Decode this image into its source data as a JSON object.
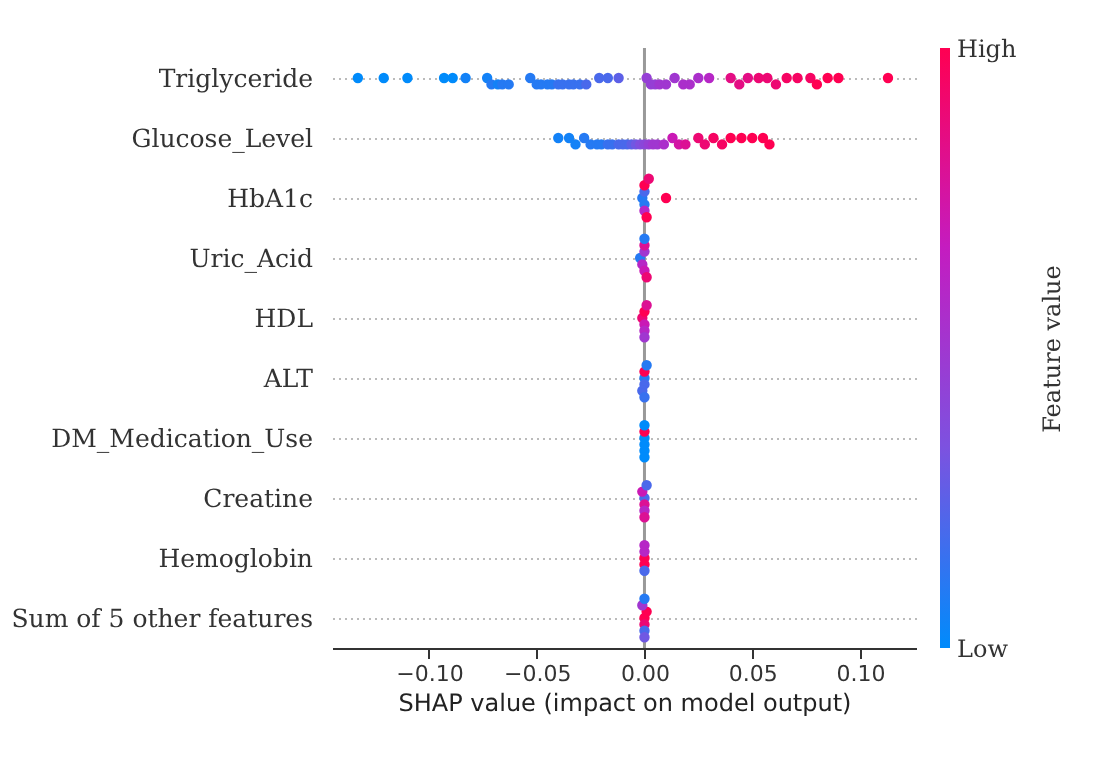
{
  "chart_data": {
    "type": "scatter",
    "orientation": "horizontal",
    "marker": "circle",
    "grid": "y",
    "categories": [
      "Triglyceride",
      "Glucose_Level",
      "HbA1c",
      "Uric_Acid",
      "HDL",
      "ALT",
      "DM_Medication_Use",
      "Creatine",
      "Hemoglobin",
      "Sum of 5 other features"
    ],
    "xlabel": "SHAP value (impact on model output)",
    "clabel": "Feature value",
    "xlim": [
      -0.145,
      0.126
    ],
    "xticks": [
      {
        "value": -0.1,
        "label": "−0.10"
      },
      {
        "value": -0.05,
        "label": "−0.05"
      },
      {
        "value": 0,
        "label": "0.00"
      },
      {
        "value": 0.05,
        "label": "0.05"
      },
      {
        "value": 0.1,
        "label": "0.10"
      }
    ],
    "clim": [
      0,
      1
    ],
    "cticks": [
      {
        "value": 0,
        "label": "Low"
      },
      {
        "value": 1,
        "label": "High"
      }
    ],
    "ref_lines": [
      {
        "axis": "x",
        "value": 0,
        "color": "#999999"
      }
    ],
    "series": [
      {
        "x": [
          "Triglyceride",
          "Triglyceride",
          "Triglyceride",
          "Triglyceride",
          "Triglyceride",
          "Triglyceride",
          "Triglyceride",
          "Triglyceride",
          "Triglyceride",
          "Triglyceride",
          "Triglyceride",
          "Triglyceride",
          "Triglyceride",
          "Triglyceride",
          "Triglyceride",
          "Triglyceride",
          "Triglyceride",
          "Triglyceride",
          "Triglyceride",
          "Triglyceride",
          "Triglyceride",
          "Triglyceride",
          "Triglyceride",
          "Triglyceride",
          "Triglyceride",
          "Triglyceride",
          "Triglyceride",
          "Triglyceride",
          "Triglyceride",
          "Triglyceride",
          "Triglyceride",
          "Triglyceride",
          "Triglyceride",
          "Triglyceride",
          "Triglyceride",
          "Triglyceride",
          "Triglyceride",
          "Triglyceride",
          "Triglyceride",
          "Triglyceride",
          "Triglyceride",
          "Triglyceride",
          "Triglyceride",
          "Triglyceride",
          "Triglyceride",
          "Triglyceride",
          "Triglyceride",
          "Triglyceride"
        ],
        "values": [
          -0.133,
          -0.121,
          -0.11,
          -0.093,
          -0.089,
          -0.083,
          -0.073,
          -0.071,
          -0.068,
          -0.066,
          -0.063,
          -0.053,
          -0.05,
          -0.048,
          -0.045,
          -0.043,
          -0.04,
          -0.038,
          -0.035,
          -0.033,
          -0.03,
          -0.027,
          -0.021,
          -0.017,
          -0.012,
          0.001,
          0.003,
          0.005,
          0.007,
          0.01,
          0.014,
          0.018,
          0.021,
          0.025,
          0.03,
          0.04,
          0.044,
          0.048,
          0.053,
          0.057,
          0.061,
          0.066,
          0.071,
          0.077,
          0.08,
          0.085,
          0.09,
          0.113
        ],
        "cvalues": [
          0,
          0,
          0,
          0,
          0,
          0.05,
          0.05,
          0.1,
          0.05,
          0.1,
          0.1,
          0.1,
          0.1,
          0.1,
          0.1,
          0.1,
          0.15,
          0.15,
          0.15,
          0.15,
          0.15,
          0.2,
          0.2,
          0.2,
          0.25,
          0.45,
          0.45,
          0.45,
          0.5,
          0.5,
          0.5,
          0.55,
          0.55,
          0.55,
          0.6,
          0.85,
          0.85,
          0.85,
          0.9,
          0.9,
          0.9,
          0.95,
          0.95,
          0.95,
          1,
          1,
          1,
          1
        ],
        "colors": [
          "#008bfb",
          "#008bfb",
          "#008bfb",
          "#008bfb",
          "#008bfb",
          "#1382f7",
          "#1382f7",
          "#257af3",
          "#1382f7",
          "#257af3",
          "#257af3",
          "#257af3",
          "#257af3",
          "#257af3",
          "#257af3",
          "#257af3",
          "#3871ef",
          "#3871ef",
          "#3871ef",
          "#3871ef",
          "#3871ef",
          "#4a69eb",
          "#4a69eb",
          "#4a69eb",
          "#5d60e7",
          "#953fd5",
          "#953fd5",
          "#953fd5",
          "#a037d0",
          "#a037d0",
          "#a037d0",
          "#ab2fcb",
          "#ab2fcb",
          "#ab2fcb",
          "#b627c6",
          "#e40d84",
          "#e40d84",
          "#e40d84",
          "#ed0873",
          "#ed0873",
          "#ed0873",
          "#f60462",
          "#f60462",
          "#f60462",
          "#ff0052",
          "#ff0052",
          "#ff0052",
          "#ff0052"
        ]
      },
      {
        "x": [
          "Glucose_Level",
          "Glucose_Level",
          "Glucose_Level",
          "Glucose_Level",
          "Glucose_Level",
          "Glucose_Level",
          "Glucose_Level",
          "Glucose_Level",
          "Glucose_Level",
          "Glucose_Level",
          "Glucose_Level",
          "Glucose_Level",
          "Glucose_Level",
          "Glucose_Level",
          "Glucose_Level",
          "Glucose_Level",
          "Glucose_Level",
          "Glucose_Level",
          "Glucose_Level",
          "Glucose_Level",
          "Glucose_Level",
          "Glucose_Level",
          "Glucose_Level",
          "Glucose_Level",
          "Glucose_Level",
          "Glucose_Level",
          "Glucose_Level",
          "Glucose_Level",
          "Glucose_Level",
          "Glucose_Level",
          "Glucose_Level",
          "Glucose_Level"
        ],
        "values": [
          -0.04,
          -0.035,
          -0.032,
          -0.028,
          -0.025,
          -0.022,
          -0.02,
          -0.017,
          -0.015,
          -0.012,
          -0.01,
          -0.008,
          -0.006,
          -0.004,
          -0.002,
          0.0,
          0.002,
          0.004,
          0.006,
          0.009,
          0.013,
          0.016,
          0.019,
          0.025,
          0.028,
          0.032,
          0.036,
          0.04,
          0.045,
          0.05,
          0.055,
          0.058
        ],
        "cvalues": [
          0.05,
          0.05,
          0.05,
          0.1,
          0.1,
          0.1,
          0.1,
          0.15,
          0.15,
          0.2,
          0.2,
          0.2,
          0.25,
          0.3,
          0.35,
          0.4,
          0.45,
          0.5,
          0.5,
          0.55,
          0.7,
          0.75,
          0.8,
          0.9,
          0.9,
          0.95,
          0.95,
          1,
          1,
          1,
          1,
          1
        ],
        "colors": [
          "#1382f7",
          "#1382f7",
          "#1382f7",
          "#257af3",
          "#257af3",
          "#257af3",
          "#257af3",
          "#3871ef",
          "#3871ef",
          "#4a69eb",
          "#4a69eb",
          "#4a69eb",
          "#5d60e7",
          "#7058e3",
          "#804fde",
          "#8a47da",
          "#953fd5",
          "#a037d0",
          "#a037d0",
          "#ab2fcb",
          "#ca19b5",
          "#d315a4",
          "#dc1194",
          "#ed0873",
          "#ed0873",
          "#f60462",
          "#f60462",
          "#ff0052",
          "#ff0052",
          "#ff0052",
          "#ff0052",
          "#ff0052"
        ]
      },
      {
        "x": [
          "HbA1c",
          "HbA1c",
          "HbA1c",
          "HbA1c",
          "HbA1c",
          "HbA1c",
          "HbA1c",
          "HbA1c"
        ],
        "values": [
          -0.001,
          0.0,
          0.0,
          0.0,
          0.0,
          0.001,
          0.002,
          0.01
        ],
        "cvalues": [
          0.1,
          0.1,
          0.2,
          0.6,
          1,
          1,
          0.9,
          1
        ],
        "colors": [
          "#257af3",
          "#257af3",
          "#4a69eb",
          "#b627c6",
          "#ff0052",
          "#ff0052",
          "#ed0873",
          "#ff0052"
        ]
      },
      {
        "x": [
          "Uric_Acid",
          "Uric_Acid",
          "Uric_Acid",
          "Uric_Acid",
          "Uric_Acid",
          "Uric_Acid",
          "Uric_Acid"
        ],
        "values": [
          -0.002,
          -0.001,
          0.0,
          0.0,
          0.0,
          0.001,
          0.0
        ],
        "cvalues": [
          0.1,
          0.6,
          0.5,
          0.7,
          0.8,
          0.9,
          0.1
        ],
        "colors": [
          "#257af3",
          "#b627c6",
          "#a037d0",
          "#ca19b5",
          "#dc1194",
          "#ed0873",
          "#257af3"
        ]
      },
      {
        "x": [
          "HDL",
          "HDL",
          "HDL",
          "HDL",
          "HDL",
          "HDL"
        ],
        "values": [
          -0.001,
          0.0,
          0.0,
          0.0,
          0.001,
          0.0
        ],
        "cvalues": [
          0.9,
          0.7,
          1,
          0.6,
          0.8,
          0.5
        ],
        "colors": [
          "#ed0873",
          "#ca19b5",
          "#ff0052",
          "#b627c6",
          "#dc1194",
          "#a037d0"
        ]
      },
      {
        "x": [
          "ALT",
          "ALT",
          "ALT",
          "ALT",
          "ALT",
          "ALT"
        ],
        "values": [
          0.0,
          0.0,
          0.0,
          -0.001,
          0.001,
          0.0
        ],
        "cvalues": [
          0.1,
          0.2,
          1,
          0.2,
          0.1,
          0.15
        ],
        "colors": [
          "#257af3",
          "#4a69eb",
          "#ff0052",
          "#4a69eb",
          "#257af3",
          "#3871ef"
        ]
      },
      {
        "x": [
          "DM_Medication_Use",
          "DM_Medication_Use",
          "DM_Medication_Use",
          "DM_Medication_Use",
          "DM_Medication_Use",
          "DM_Medication_Use"
        ],
        "values": [
          0.0,
          0.0,
          0.0,
          0.0,
          0.0,
          0.0
        ],
        "cvalues": [
          0,
          0,
          1,
          0,
          0,
          0
        ],
        "colors": [
          "#008bfb",
          "#008bfb",
          "#ff0052",
          "#008bfb",
          "#008bfb",
          "#008bfb"
        ]
      },
      {
        "x": [
          "Creatine",
          "Creatine",
          "Creatine",
          "Creatine",
          "Creatine",
          "Creatine"
        ],
        "values": [
          0.0,
          0.0,
          -0.001,
          0.0,
          0.001,
          0.0
        ],
        "cvalues": [
          0.2,
          0.8,
          0.7,
          0.6,
          0.2,
          0.8
        ],
        "colors": [
          "#4a69eb",
          "#dc1194",
          "#ca19b5",
          "#b627c6",
          "#4a69eb",
          "#dc1194"
        ]
      },
      {
        "x": [
          "Hemoglobin",
          "Hemoglobin",
          "Hemoglobin",
          "Hemoglobin",
          "Hemoglobin"
        ],
        "values": [
          0.0,
          0.0,
          0.0,
          0.0,
          0.0
        ],
        "cvalues": [
          1,
          1,
          0.6,
          0.2,
          0.6
        ],
        "colors": [
          "#ff0052",
          "#ff0052",
          "#b627c6",
          "#4a69eb",
          "#b627c6"
        ]
      },
      {
        "x": [
          "Sum of 5 other features",
          "Sum of 5 other features",
          "Sum of 5 other features",
          "Sum of 5 other features",
          "Sum of 5 other features",
          "Sum of 5 other features",
          "Sum of 5 other features"
        ],
        "values": [
          0.0,
          0.0,
          0.001,
          0.0,
          -0.001,
          0.0,
          0.0
        ],
        "cvalues": [
          1,
          0.9,
          1,
          0.2,
          0.5,
          0.3,
          0.1
        ],
        "colors": [
          "#ff0052",
          "#ed0873",
          "#ff0052",
          "#4a69eb",
          "#a037d0",
          "#7058e3",
          "#257af3"
        ]
      }
    ]
  }
}
